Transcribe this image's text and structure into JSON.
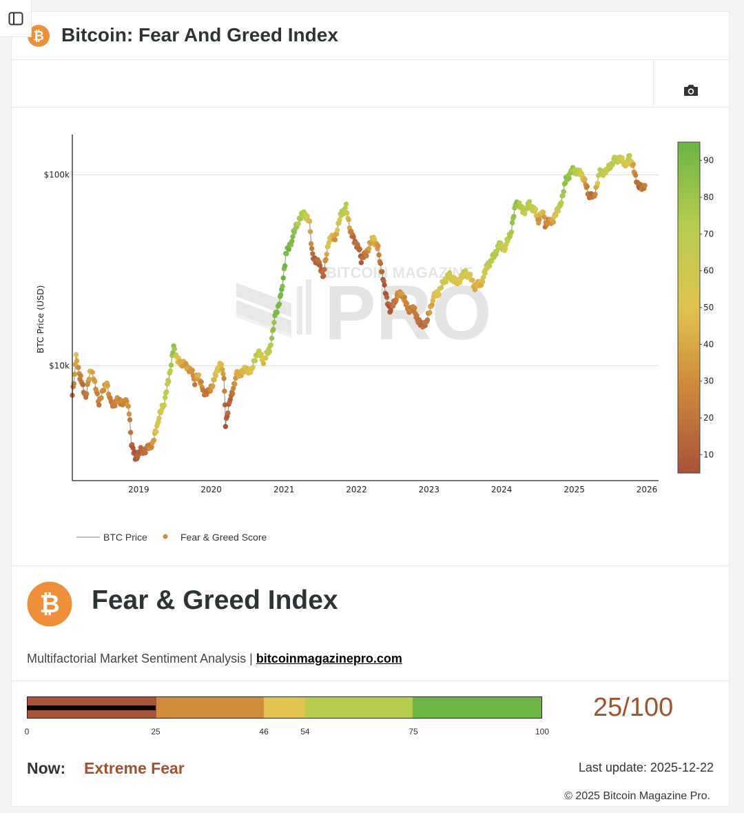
{
  "header": {
    "title": "Bitcoin: Fear And Greed Index",
    "logo_icon": "bitcoin-logo-icon"
  },
  "toolbar": {
    "camera_icon": "camera-icon"
  },
  "watermark": {
    "top": "BITCOIN MAGAZINE",
    "main": "PRO"
  },
  "colors": {
    "brand": "#ef8f3a",
    "extreme_fear": "#a9533a",
    "fear": "#d18c3b",
    "neutral": "#e0c44f",
    "greed": "#b6cc4e",
    "extreme_greed": "#6cb444",
    "score_text": "#a0522d"
  },
  "chart_data": {
    "type": "scatter",
    "ylabel": "BTC Price (USD)",
    "yscale": "log",
    "ylim": [
      2500,
      160000
    ],
    "y_ticks": [
      {
        "value": 10000,
        "label": "$10k"
      },
      {
        "value": 100000,
        "label": "$100k"
      }
    ],
    "x_ticks": [
      "2019",
      "2020",
      "2021",
      "2022",
      "2023",
      "2024",
      "2025",
      "2026"
    ],
    "xlim": [
      "2018-02-01",
      "2026-03-01"
    ],
    "colorbar": {
      "min": 5,
      "max": 95,
      "ticks": [
        10,
        20,
        30,
        40,
        50,
        60,
        70,
        80,
        90
      ]
    },
    "legend": [
      "BTC Price",
      "Fear & Greed Score"
    ],
    "grid": true,
    "series": [
      {
        "name": "Fear & Greed Score",
        "points": [
          {
            "date": "2018-02-01",
            "price": 7000,
            "score": 15
          },
          {
            "date": "2018-02-20",
            "price": 11000,
            "score": 45
          },
          {
            "date": "2018-03-15",
            "price": 8500,
            "score": 20
          },
          {
            "date": "2018-04-10",
            "price": 6800,
            "score": 18
          },
          {
            "date": "2018-05-05",
            "price": 9700,
            "score": 45
          },
          {
            "date": "2018-06-15",
            "price": 6500,
            "score": 22
          },
          {
            "date": "2018-07-25",
            "price": 8200,
            "score": 40
          },
          {
            "date": "2018-08-15",
            "price": 6300,
            "score": 20
          },
          {
            "date": "2018-09-15",
            "price": 6500,
            "score": 30
          },
          {
            "date": "2018-10-20",
            "price": 6450,
            "score": 25
          },
          {
            "date": "2018-11-10",
            "price": 6300,
            "score": 35
          },
          {
            "date": "2018-11-25",
            "price": 4000,
            "score": 12
          },
          {
            "date": "2018-12-15",
            "price": 3300,
            "score": 8
          },
          {
            "date": "2019-01-15",
            "price": 3600,
            "score": 15
          },
          {
            "date": "2019-02-15",
            "price": 3650,
            "score": 20
          },
          {
            "date": "2019-03-15",
            "price": 3950,
            "score": 35
          },
          {
            "date": "2019-04-10",
            "price": 5200,
            "score": 55
          },
          {
            "date": "2019-05-10",
            "price": 6500,
            "score": 62
          },
          {
            "date": "2019-06-01",
            "price": 8500,
            "score": 68
          },
          {
            "date": "2019-06-26",
            "price": 12500,
            "score": 85
          },
          {
            "date": "2019-07-20",
            "price": 10500,
            "score": 45
          },
          {
            "date": "2019-08-15",
            "price": 10200,
            "score": 38
          },
          {
            "date": "2019-09-20",
            "price": 9600,
            "score": 35
          },
          {
            "date": "2019-10-10",
            "price": 8300,
            "score": 25
          },
          {
            "date": "2019-10-26",
            "price": 9200,
            "score": 45
          },
          {
            "date": "2019-11-20",
            "price": 7400,
            "score": 22
          },
          {
            "date": "2019-12-20",
            "price": 7200,
            "score": 18
          },
          {
            "date": "2020-01-20",
            "price": 8700,
            "score": 50
          },
          {
            "date": "2020-02-14",
            "price": 10300,
            "score": 55
          },
          {
            "date": "2020-03-05",
            "price": 8900,
            "score": 30
          },
          {
            "date": "2020-03-13",
            "price": 5000,
            "score": 8
          },
          {
            "date": "2020-04-10",
            "price": 7000,
            "score": 15
          },
          {
            "date": "2020-05-10",
            "price": 9000,
            "score": 40
          },
          {
            "date": "2020-06-20",
            "price": 9400,
            "score": 45
          },
          {
            "date": "2020-07-25",
            "price": 9600,
            "score": 55
          },
          {
            "date": "2020-08-20",
            "price": 11800,
            "score": 75
          },
          {
            "date": "2020-09-20",
            "price": 10700,
            "score": 48
          },
          {
            "date": "2020-10-20",
            "price": 12000,
            "score": 72
          },
          {
            "date": "2020-11-20",
            "price": 18500,
            "score": 88
          },
          {
            "date": "2020-12-20",
            "price": 24000,
            "score": 92
          },
          {
            "date": "2021-01-10",
            "price": 38000,
            "score": 93
          },
          {
            "date": "2021-02-10",
            "price": 46000,
            "score": 90
          },
          {
            "date": "2021-03-15",
            "price": 58000,
            "score": 75
          },
          {
            "date": "2021-04-14",
            "price": 63000,
            "score": 72
          },
          {
            "date": "2021-05-10",
            "price": 56000,
            "score": 45
          },
          {
            "date": "2021-05-25",
            "price": 37000,
            "score": 12
          },
          {
            "date": "2021-06-20",
            "price": 35000,
            "score": 15
          },
          {
            "date": "2021-07-20",
            "price": 30000,
            "score": 12
          },
          {
            "date": "2021-08-15",
            "price": 46000,
            "score": 60
          },
          {
            "date": "2021-09-15",
            "price": 47000,
            "score": 35
          },
          {
            "date": "2021-10-20",
            "price": 64000,
            "score": 72
          },
          {
            "date": "2021-11-10",
            "price": 67500,
            "score": 70
          },
          {
            "date": "2021-12-05",
            "price": 49000,
            "score": 20
          },
          {
            "date": "2022-01-10",
            "price": 42000,
            "score": 15
          },
          {
            "date": "2022-01-25",
            "price": 36000,
            "score": 10
          },
          {
            "date": "2022-02-20",
            "price": 39000,
            "score": 25
          },
          {
            "date": "2022-03-28",
            "price": 47000,
            "score": 50
          },
          {
            "date": "2022-04-20",
            "price": 41000,
            "score": 30
          },
          {
            "date": "2022-05-10",
            "price": 30000,
            "score": 10
          },
          {
            "date": "2022-06-18",
            "price": 19000,
            "score": 8
          },
          {
            "date": "2022-07-20",
            "price": 23000,
            "score": 25
          },
          {
            "date": "2022-08-15",
            "price": 24000,
            "score": 35
          },
          {
            "date": "2022-09-15",
            "price": 20000,
            "score": 22
          },
          {
            "date": "2022-10-20",
            "price": 19500,
            "score": 25
          },
          {
            "date": "2022-11-15",
            "price": 16500,
            "score": 15
          },
          {
            "date": "2022-12-20",
            "price": 16800,
            "score": 20
          },
          {
            "date": "2023-01-20",
            "price": 22500,
            "score": 45
          },
          {
            "date": "2023-02-20",
            "price": 24500,
            "score": 55
          },
          {
            "date": "2023-03-20",
            "price": 28000,
            "score": 55
          },
          {
            "date": "2023-04-15",
            "price": 30000,
            "score": 62
          },
          {
            "date": "2023-05-20",
            "price": 27000,
            "score": 48
          },
          {
            "date": "2023-06-25",
            "price": 30500,
            "score": 60
          },
          {
            "date": "2023-07-20",
            "price": 29800,
            "score": 55
          },
          {
            "date": "2023-08-20",
            "price": 26000,
            "score": 42
          },
          {
            "date": "2023-09-20",
            "price": 27000,
            "score": 45
          },
          {
            "date": "2023-10-25",
            "price": 34000,
            "score": 68
          },
          {
            "date": "2023-11-20",
            "price": 37000,
            "score": 72
          },
          {
            "date": "2023-12-20",
            "price": 43000,
            "score": 72
          },
          {
            "date": "2024-01-20",
            "price": 41500,
            "score": 55
          },
          {
            "date": "2024-02-20",
            "price": 52000,
            "score": 78
          },
          {
            "date": "2024-03-14",
            "price": 72000,
            "score": 85
          },
          {
            "date": "2024-04-20",
            "price": 64000,
            "score": 65
          },
          {
            "date": "2024-05-20",
            "price": 70000,
            "score": 72
          },
          {
            "date": "2024-06-20",
            "price": 64000,
            "score": 55
          },
          {
            "date": "2024-07-05",
            "price": 56000,
            "score": 30
          },
          {
            "date": "2024-07-25",
            "price": 66000,
            "score": 55
          },
          {
            "date": "2024-08-07",
            "price": 55000,
            "score": 25
          },
          {
            "date": "2024-09-10",
            "price": 57000,
            "score": 35
          },
          {
            "date": "2024-10-20",
            "price": 68000,
            "score": 70
          },
          {
            "date": "2024-11-20",
            "price": 94000,
            "score": 85
          },
          {
            "date": "2024-12-17",
            "price": 105000,
            "score": 80
          },
          {
            "date": "2025-01-20",
            "price": 104000,
            "score": 70
          },
          {
            "date": "2025-02-20",
            "price": 96000,
            "score": 45
          },
          {
            "date": "2025-03-10",
            "price": 80000,
            "score": 20
          },
          {
            "date": "2025-04-08",
            "price": 76000,
            "score": 15
          },
          {
            "date": "2025-05-10",
            "price": 103000,
            "score": 70
          },
          {
            "date": "2025-06-15",
            "price": 105000,
            "score": 62
          },
          {
            "date": "2025-07-15",
            "price": 118000,
            "score": 72
          },
          {
            "date": "2025-08-14",
            "price": 122000,
            "score": 65
          },
          {
            "date": "2025-09-15",
            "price": 113000,
            "score": 50
          },
          {
            "date": "2025-10-06",
            "price": 124000,
            "score": 70
          },
          {
            "date": "2025-10-25",
            "price": 110000,
            "score": 35
          },
          {
            "date": "2025-11-20",
            "price": 86000,
            "score": 12
          },
          {
            "date": "2025-12-22",
            "price": 88000,
            "score": 25
          }
        ]
      }
    ]
  },
  "gauge": {
    "title": "Fear & Greed Index",
    "subtitle": "Multifactorial Market Sentiment Analysis |",
    "link": "bitcoinmagazinepro.com",
    "ticks": [
      "0",
      "25",
      "46",
      "54",
      "75",
      "100"
    ],
    "bands": [
      0,
      25,
      46,
      54,
      75,
      100
    ],
    "value": 25,
    "score_text": "25/100",
    "now_label": "Now:",
    "now_value": "Extreme Fear",
    "last_update": "Last update: 2025-12-22",
    "copyright": "© 2025 Bitcoin Magazine Pro."
  }
}
